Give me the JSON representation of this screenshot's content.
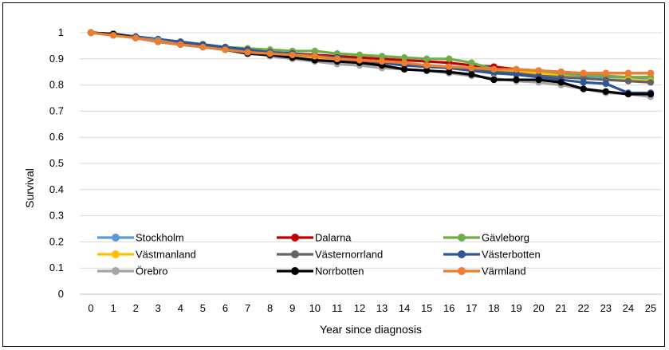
{
  "chart_data": {
    "type": "line",
    "title": "",
    "xlabel": "Year since diagnosis",
    "ylabel": "Survival",
    "x": [
      0,
      1,
      2,
      3,
      4,
      5,
      6,
      7,
      8,
      9,
      10,
      11,
      12,
      13,
      14,
      15,
      16,
      17,
      18,
      19,
      20,
      21,
      22,
      23,
      24,
      25
    ],
    "xlim": [
      0,
      25
    ],
    "ylim": [
      0,
      1
    ],
    "yticks": [
      "0",
      "0.1",
      "0.2",
      "0.3",
      "0.4",
      "0.5",
      "0.6",
      "0.7",
      "0.8",
      "0.9",
      "1"
    ],
    "grid": "horizontal",
    "legend_placement": "lower-left inside plot",
    "series": [
      {
        "name": "Stockholm",
        "color": "#5B9BD5",
        "values": [
          1,
          0.99,
          0.985,
          0.975,
          0.965,
          0.955,
          0.94,
          0.93,
          0.92,
          0.915,
          0.905,
          0.9,
          0.89,
          0.885,
          0.875,
          0.87,
          0.865,
          0.86,
          0.855,
          0.85,
          0.845,
          0.84,
          0.835,
          0.83,
          0.83,
          0.825
        ]
      },
      {
        "name": "Dalarna",
        "color": "#C00000",
        "values": [
          1,
          0.99,
          0.98,
          0.97,
          0.96,
          0.95,
          0.94,
          0.93,
          0.925,
          0.92,
          0.915,
          0.91,
          0.905,
          0.9,
          0.895,
          0.89,
          0.885,
          0.875,
          0.87,
          0.86,
          0.855,
          0.85,
          0.845,
          0.845,
          0.845,
          0.845
        ]
      },
      {
        "name": "Gävleborg",
        "color": "#70AD47",
        "values": [
          1,
          0.995,
          0.985,
          0.975,
          0.965,
          0.955,
          0.945,
          0.94,
          0.935,
          0.93,
          0.93,
          0.92,
          0.915,
          0.91,
          0.905,
          0.9,
          0.9,
          0.885,
          0.86,
          0.855,
          0.85,
          0.845,
          0.84,
          0.835,
          0.83,
          0.83
        ]
      },
      {
        "name": "Västmanland",
        "color": "#FFC000",
        "values": [
          1,
          0.99,
          0.98,
          0.97,
          0.96,
          0.95,
          0.94,
          0.93,
          0.92,
          0.915,
          0.905,
          0.9,
          0.89,
          0.885,
          0.875,
          0.87,
          0.865,
          0.86,
          0.855,
          0.85,
          0.845,
          0.835,
          0.825,
          0.82,
          0.82,
          0.815
        ]
      },
      {
        "name": "Västernorrland",
        "color": "#636363",
        "values": [
          1,
          0.995,
          0.985,
          0.975,
          0.965,
          0.95,
          0.94,
          0.93,
          0.925,
          0.92,
          0.91,
          0.905,
          0.895,
          0.89,
          0.88,
          0.875,
          0.87,
          0.86,
          0.85,
          0.845,
          0.835,
          0.83,
          0.825,
          0.82,
          0.815,
          0.81
        ]
      },
      {
        "name": "Västerbotten",
        "color": "#2E5597",
        "values": [
          1,
          0.995,
          0.985,
          0.975,
          0.965,
          0.955,
          0.945,
          0.935,
          0.925,
          0.92,
          0.91,
          0.905,
          0.895,
          0.885,
          0.875,
          0.87,
          0.865,
          0.855,
          0.845,
          0.84,
          0.83,
          0.82,
          0.81,
          0.805,
          0.77,
          0.77
        ]
      },
      {
        "name": "Örebro",
        "color": "#A5A5A5",
        "values": [
          1,
          0.99,
          0.98,
          0.97,
          0.955,
          0.945,
          0.935,
          0.925,
          0.91,
          0.9,
          0.89,
          0.88,
          0.875,
          0.865,
          0.86,
          0.855,
          0.845,
          0.835,
          0.825,
          0.815,
          0.81,
          0.8,
          0.785,
          0.77,
          0.765,
          0.755
        ]
      },
      {
        "name": "Norrbotten",
        "color": "#000000",
        "values": [
          1,
          0.995,
          0.98,
          0.965,
          0.955,
          0.945,
          0.935,
          0.92,
          0.915,
          0.905,
          0.895,
          0.89,
          0.885,
          0.875,
          0.86,
          0.855,
          0.85,
          0.84,
          0.82,
          0.82,
          0.82,
          0.81,
          0.785,
          0.775,
          0.765,
          0.765
        ]
      },
      {
        "name": "Värmland",
        "color": "#ED7D31",
        "values": [
          1,
          0.99,
          0.98,
          0.965,
          0.955,
          0.945,
          0.935,
          0.925,
          0.92,
          0.915,
          0.91,
          0.9,
          0.895,
          0.89,
          0.885,
          0.875,
          0.87,
          0.865,
          0.86,
          0.86,
          0.855,
          0.85,
          0.845,
          0.845,
          0.845,
          0.845
        ]
      }
    ]
  }
}
